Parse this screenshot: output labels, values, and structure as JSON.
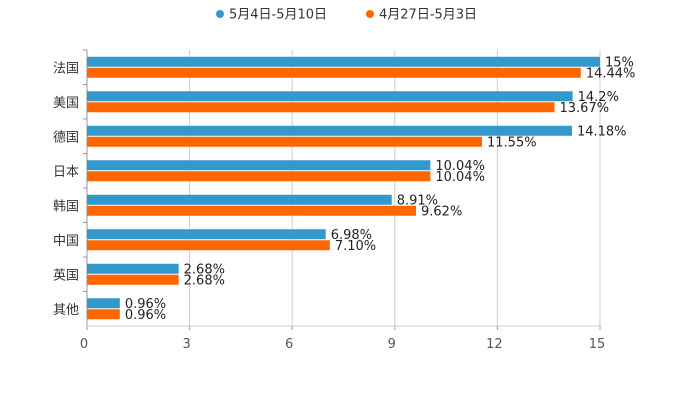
{
  "chart_data": {
    "type": "bar",
    "orientation": "horizontal",
    "categories": [
      "法国",
      "美国",
      "德国",
      "日本",
      "韩国",
      "中国",
      "英国",
      "其他"
    ],
    "series": [
      {
        "name": "5月4日-5月10日",
        "color": "#3399cc",
        "values": [
          15,
          14.2,
          14.18,
          10.04,
          8.91,
          6.98,
          2.68,
          0.96
        ],
        "labels": [
          "15%",
          "14.2%",
          "14.18%",
          "10.04%",
          "8.91%",
          "6.98%",
          "2.68%",
          "0.96%"
        ]
      },
      {
        "name": "4月27日-5月3日",
        "color": "#ff6600",
        "values": [
          14.44,
          13.67,
          11.55,
          10.04,
          9.62,
          7.1,
          2.68,
          0.96
        ],
        "labels": [
          "14.44%",
          "13.67%",
          "11.55%",
          "10.04%",
          "9.62%",
          "7.10%",
          "2.68%",
          "0.96%"
        ]
      }
    ],
    "xlim": [
      0,
      15
    ],
    "xticks": [
      "0",
      "3",
      "6",
      "9",
      "12",
      "15"
    ],
    "grid": true,
    "legend_position": "top-center"
  }
}
